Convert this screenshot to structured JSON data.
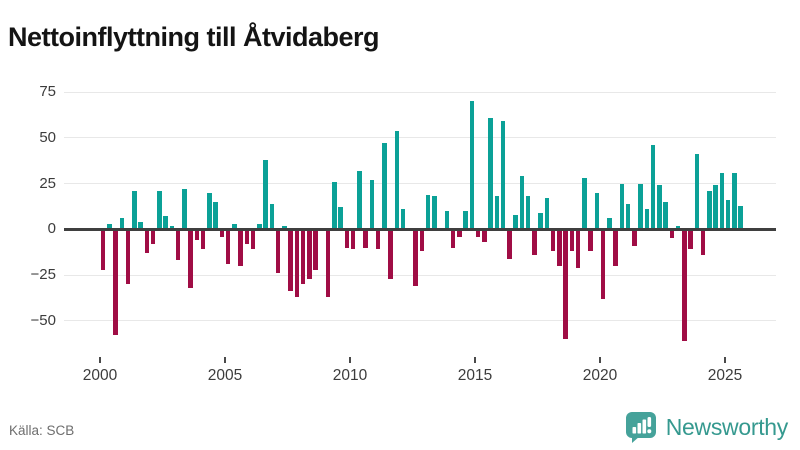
{
  "title": "Nettoinflyttning till Åtvidaberg",
  "source": "Källa: SCB",
  "brand": {
    "name": "Newsworthy"
  },
  "colors": {
    "positive_bar": "#0ba197",
    "negative_bar": "#a00d45",
    "brand_teal": "#35998f",
    "brand_icon": "#45a29a",
    "grid": "#e8e8e8",
    "zero_line": "#3f3f3f",
    "axis_text": "#3c3c3c",
    "title_text": "#141414",
    "source_text": "#6e6e6e"
  },
  "chart_data": {
    "type": "bar",
    "title": "Nettoinflyttning till Åtvidaberg",
    "frequency": "quarterly",
    "grid": true,
    "legend": false,
    "xlabel": "",
    "ylabel": "",
    "x_tick_labels": [
      "2000",
      "2005",
      "2010",
      "2015",
      "2020",
      "2025"
    ],
    "y_ticks": [
      75,
      50,
      25,
      0,
      -25,
      -50
    ],
    "ylim": [
      -65,
      82
    ],
    "points": [
      {
        "quarter": "2000Q1",
        "value": -22
      },
      {
        "quarter": "2000Q2",
        "value": 3
      },
      {
        "quarter": "2000Q3",
        "value": -58
      },
      {
        "quarter": "2000Q4",
        "value": 6
      },
      {
        "quarter": "2001Q1",
        "value": -30
      },
      {
        "quarter": "2001Q2",
        "value": 21
      },
      {
        "quarter": "2001Q3",
        "value": 4
      },
      {
        "quarter": "2001Q4",
        "value": -13
      },
      {
        "quarter": "2002Q1",
        "value": -8
      },
      {
        "quarter": "2002Q2",
        "value": 21
      },
      {
        "quarter": "2002Q3",
        "value": 7
      },
      {
        "quarter": "2002Q4",
        "value": 2
      },
      {
        "quarter": "2003Q1",
        "value": -17
      },
      {
        "quarter": "2003Q2",
        "value": 22
      },
      {
        "quarter": "2003Q3",
        "value": -32
      },
      {
        "quarter": "2003Q4",
        "value": -6
      },
      {
        "quarter": "2004Q1",
        "value": -11
      },
      {
        "quarter": "2004Q2",
        "value": 20
      },
      {
        "quarter": "2004Q3",
        "value": 15
      },
      {
        "quarter": "2004Q4",
        "value": -4
      },
      {
        "quarter": "2005Q1",
        "value": -19
      },
      {
        "quarter": "2005Q2",
        "value": 3
      },
      {
        "quarter": "2005Q3",
        "value": -20
      },
      {
        "quarter": "2005Q4",
        "value": -8
      },
      {
        "quarter": "2006Q1",
        "value": -11
      },
      {
        "quarter": "2006Q2",
        "value": 3
      },
      {
        "quarter": "2006Q3",
        "value": 38
      },
      {
        "quarter": "2006Q4",
        "value": 14
      },
      {
        "quarter": "2007Q1",
        "value": -24
      },
      {
        "quarter": "2007Q2",
        "value": 2
      },
      {
        "quarter": "2007Q3",
        "value": -34
      },
      {
        "quarter": "2007Q4",
        "value": -37
      },
      {
        "quarter": "2008Q1",
        "value": -30
      },
      {
        "quarter": "2008Q2",
        "value": -27
      },
      {
        "quarter": "2008Q3",
        "value": -22
      },
      {
        "quarter": "2008Q4",
        "value": 0
      },
      {
        "quarter": "2009Q1",
        "value": -37
      },
      {
        "quarter": "2009Q2",
        "value": 26
      },
      {
        "quarter": "2009Q3",
        "value": 12
      },
      {
        "quarter": "2009Q4",
        "value": -10
      },
      {
        "quarter": "2010Q1",
        "value": -11
      },
      {
        "quarter": "2010Q2",
        "value": 32
      },
      {
        "quarter": "2010Q3",
        "value": -10
      },
      {
        "quarter": "2010Q4",
        "value": 27
      },
      {
        "quarter": "2011Q1",
        "value": -11
      },
      {
        "quarter": "2011Q2",
        "value": 47
      },
      {
        "quarter": "2011Q3",
        "value": -27
      },
      {
        "quarter": "2011Q4",
        "value": 54
      },
      {
        "quarter": "2012Q1",
        "value": 11
      },
      {
        "quarter": "2012Q2",
        "value": 0
      },
      {
        "quarter": "2012Q3",
        "value": -31
      },
      {
        "quarter": "2012Q4",
        "value": -12
      },
      {
        "quarter": "2013Q1",
        "value": 19
      },
      {
        "quarter": "2013Q2",
        "value": 18
      },
      {
        "quarter": "2013Q3",
        "value": 0
      },
      {
        "quarter": "2013Q4",
        "value": 10
      },
      {
        "quarter": "2014Q1",
        "value": -10
      },
      {
        "quarter": "2014Q2",
        "value": -4
      },
      {
        "quarter": "2014Q3",
        "value": 10
      },
      {
        "quarter": "2014Q4",
        "value": 70
      },
      {
        "quarter": "2015Q1",
        "value": -4
      },
      {
        "quarter": "2015Q2",
        "value": -7
      },
      {
        "quarter": "2015Q3",
        "value": 61
      },
      {
        "quarter": "2015Q4",
        "value": 18
      },
      {
        "quarter": "2016Q1",
        "value": 59
      },
      {
        "quarter": "2016Q2",
        "value": -16
      },
      {
        "quarter": "2016Q3",
        "value": 8
      },
      {
        "quarter": "2016Q4",
        "value": 29
      },
      {
        "quarter": "2017Q1",
        "value": 18
      },
      {
        "quarter": "2017Q2",
        "value": -14
      },
      {
        "quarter": "2017Q3",
        "value": 9
      },
      {
        "quarter": "2017Q4",
        "value": 17
      },
      {
        "quarter": "2018Q1",
        "value": -12
      },
      {
        "quarter": "2018Q2",
        "value": -20
      },
      {
        "quarter": "2018Q3",
        "value": -60
      },
      {
        "quarter": "2018Q4",
        "value": -12
      },
      {
        "quarter": "2019Q1",
        "value": -21
      },
      {
        "quarter": "2019Q2",
        "value": 28
      },
      {
        "quarter": "2019Q3",
        "value": -12
      },
      {
        "quarter": "2019Q4",
        "value": 20
      },
      {
        "quarter": "2020Q1",
        "value": -38
      },
      {
        "quarter": "2020Q2",
        "value": 6
      },
      {
        "quarter": "2020Q3",
        "value": -20
      },
      {
        "quarter": "2020Q4",
        "value": 25
      },
      {
        "quarter": "2021Q1",
        "value": 14
      },
      {
        "quarter": "2021Q2",
        "value": -9
      },
      {
        "quarter": "2021Q3",
        "value": 25
      },
      {
        "quarter": "2021Q4",
        "value": 11
      },
      {
        "quarter": "2022Q1",
        "value": 46
      },
      {
        "quarter": "2022Q2",
        "value": 24
      },
      {
        "quarter": "2022Q3",
        "value": 15
      },
      {
        "quarter": "2022Q4",
        "value": -5
      },
      {
        "quarter": "2023Q1",
        "value": 2
      },
      {
        "quarter": "2023Q2",
        "value": -61
      },
      {
        "quarter": "2023Q3",
        "value": -11
      },
      {
        "quarter": "2023Q4",
        "value": 41
      },
      {
        "quarter": "2024Q1",
        "value": -14
      },
      {
        "quarter": "2024Q2",
        "value": 21
      },
      {
        "quarter": "2024Q3",
        "value": 24
      },
      {
        "quarter": "2024Q4",
        "value": 31
      },
      {
        "quarter": "2025Q1",
        "value": 16
      },
      {
        "quarter": "2025Q2",
        "value": 31
      },
      {
        "quarter": "2025Q3",
        "value": 13
      }
    ]
  }
}
